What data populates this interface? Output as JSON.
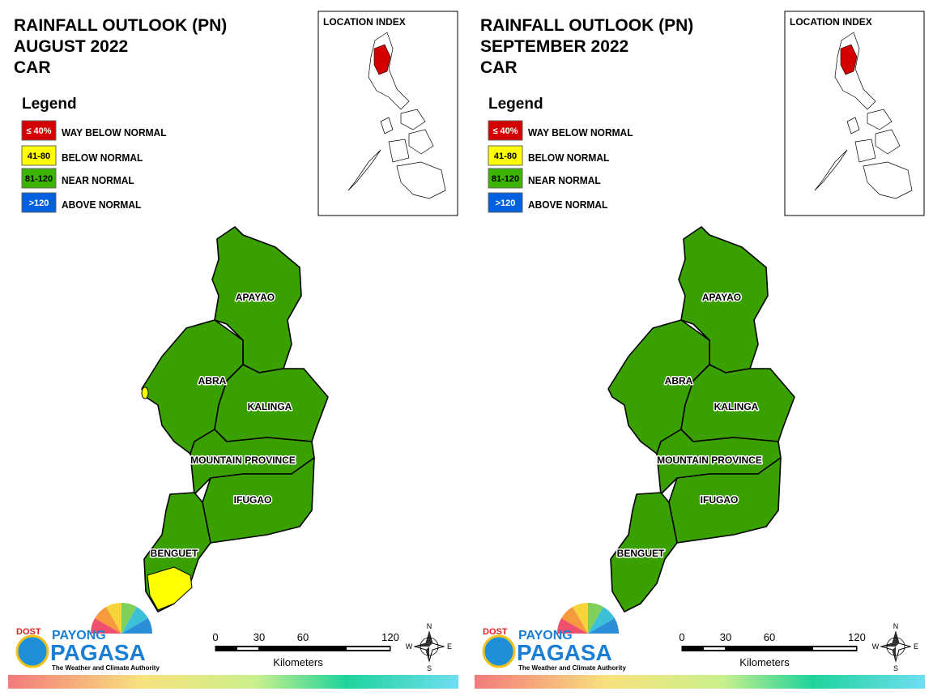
{
  "panels": [
    {
      "title_lines": [
        "RAINFALL OUTLOOK (PN)",
        "AUGUST 2022",
        "CAR"
      ],
      "legend": {
        "title": "Legend",
        "items": [
          {
            "range": "≤ 40%",
            "label": "WAY BELOW NORMAL",
            "color": "#d40000"
          },
          {
            "range": "41-80",
            "label": "BELOW NORMAL",
            "color": "#ffff00"
          },
          {
            "range": "81-120",
            "label": "NEAR NORMAL",
            "color": "#3cb400"
          },
          {
            "range": ">120",
            "label": "ABOVE NORMAL",
            "color": "#0060e0"
          }
        ]
      },
      "location_index": {
        "title": "LOCATION INDEX"
      },
      "provinces": [
        {
          "name": "APAYAO",
          "color": "#39a000"
        },
        {
          "name": "ABRA",
          "color": "#39a000",
          "patch_color": "#ffff00"
        },
        {
          "name": "KALINGA",
          "color": "#39a000"
        },
        {
          "name": "MOUNTAIN PROVINCE",
          "color": "#39a000"
        },
        {
          "name": "IFUGAO",
          "color": "#39a000"
        },
        {
          "name": "BENGUET",
          "color": "#39a000",
          "patch_color": "#ffff00"
        }
      ],
      "scale_bar": {
        "ticks": [
          0,
          30,
          60,
          120
        ],
        "unit": "Kilometers"
      },
      "compass": {
        "n": "N",
        "e": "E",
        "s": "S",
        "w": "W"
      },
      "logo": {
        "agency": "DOST",
        "line1": "PAYONG",
        "line2": "PAGASA",
        "tagline": "The Weather and Climate Authority"
      }
    },
    {
      "title_lines": [
        "RAINFALL OUTLOOK (PN)",
        "SEPTEMBER 2022",
        "CAR"
      ],
      "legend": {
        "title": "Legend",
        "items": [
          {
            "range": "≤ 40%",
            "label": "WAY BELOW NORMAL",
            "color": "#d40000"
          },
          {
            "range": "41-80",
            "label": "BELOW NORMAL",
            "color": "#ffff00"
          },
          {
            "range": "81-120",
            "label": "NEAR NORMAL",
            "color": "#3cb400"
          },
          {
            "range": ">120",
            "label": "ABOVE NORMAL",
            "color": "#0060e0"
          }
        ]
      },
      "location_index": {
        "title": "LOCATION INDEX"
      },
      "provinces": [
        {
          "name": "APAYAO",
          "color": "#39a000"
        },
        {
          "name": "ABRA",
          "color": "#39a000"
        },
        {
          "name": "KALINGA",
          "color": "#39a000"
        },
        {
          "name": "MOUNTAIN PROVINCE",
          "color": "#39a000"
        },
        {
          "name": "IFUGAO",
          "color": "#39a000"
        },
        {
          "name": "BENGUET",
          "color": "#39a000"
        }
      ],
      "scale_bar": {
        "ticks": [
          0,
          30,
          60,
          120
        ],
        "unit": "Kilometers"
      },
      "compass": {
        "n": "N",
        "e": "E",
        "s": "S",
        "w": "W"
      },
      "logo": {
        "agency": "DOST",
        "line1": "PAYONG",
        "line2": "PAGASA",
        "tagline": "The Weather and Climate Authority"
      }
    }
  ]
}
